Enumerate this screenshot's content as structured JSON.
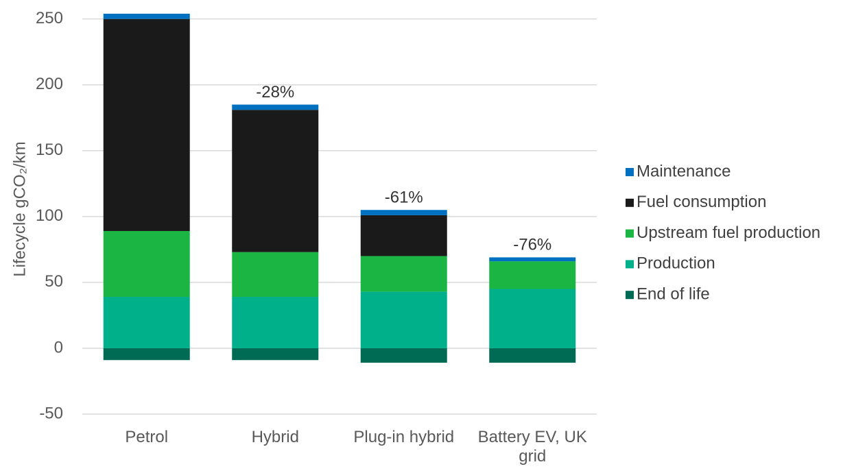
{
  "chart_data": {
    "type": "stacked_bar",
    "y_label": "Lifecycle gCO₂/km",
    "categories": [
      "Petrol",
      "Hybrid",
      "Plug-in hybrid",
      "Battery EV, UK grid"
    ],
    "series": [
      {
        "name": "End of life",
        "color": "#006b54",
        "values": [
          -9,
          -9,
          -11,
          -11
        ]
      },
      {
        "name": "Production",
        "color": "#00b08a",
        "values": [
          39,
          39,
          43,
          45
        ]
      },
      {
        "name": "Upstream fuel production",
        "color": "#1bb543",
        "values": [
          50,
          34,
          27,
          21
        ]
      },
      {
        "name": "Fuel consumption",
        "color": "#1a1a1a",
        "values": [
          161,
          108,
          31,
          0
        ]
      },
      {
        "name": "Maintenance",
        "color": "#0070c0",
        "values": [
          4,
          4,
          4,
          3
        ]
      }
    ],
    "annotations": [
      {
        "category": "Hybrid",
        "text": "-28%"
      },
      {
        "category": "Plug-in hybrid",
        "text": "-61%"
      },
      {
        "category": "Battery EV, UK grid",
        "text": "-76%"
      }
    ],
    "ylim": [
      -50,
      254
    ],
    "yticks": [
      -50,
      0,
      50,
      100,
      150,
      200,
      250
    ],
    "grid": true,
    "legend": "right"
  }
}
